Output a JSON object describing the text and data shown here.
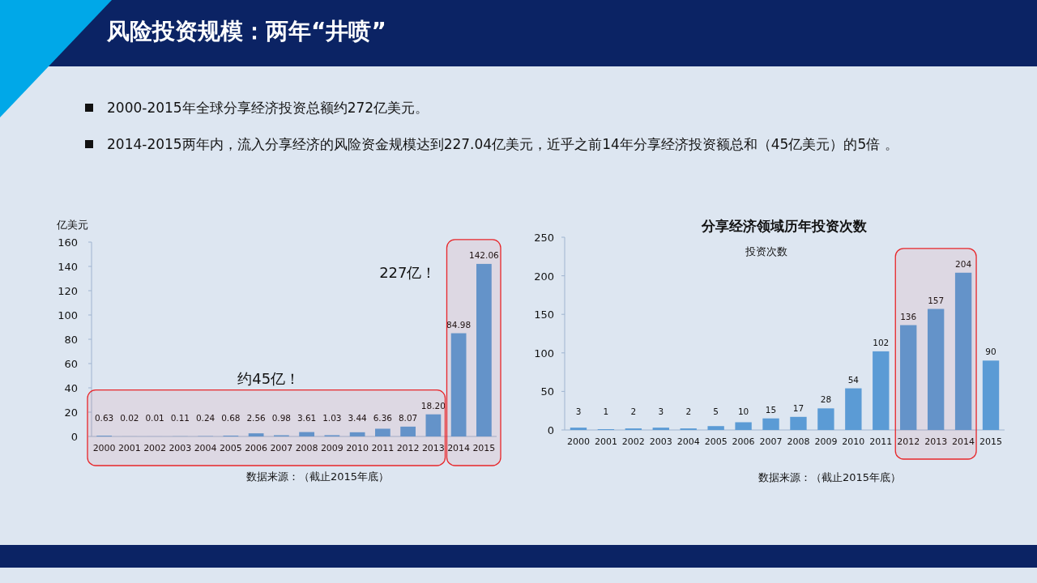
{
  "chart_data": [
    {
      "type": "bar",
      "title": "风险投资规模：两年“井喷”",
      "ylabel": "亿美元",
      "annotations": [
        "2000-2015年全球分享经济投资总额约272亿美元。",
        "2014-2015两年内，流入分享经济的风险资金规模达到227.04亿美元，近乎之前14年分享经济投资额总和（45亿美元）的5倍 。",
        "数据来源：（截止2015年底）"
      ],
      "categories": [
        "2000",
        "2001",
        "2002",
        "2003",
        "2004",
        "2005",
        "2006",
        "2007",
        "2008",
        "2009",
        "2010",
        "2011",
        "2012",
        "2013",
        "2014",
        "2015"
      ],
      "values": [
        0.63,
        0.02,
        0.01,
        0.11,
        0.24,
        0.68,
        2.56,
        0.98,
        3.61,
        1.03,
        3.44,
        6.36,
        8.07,
        18.2,
        84.98,
        142.06
      ],
      "value_labels": [
        "0.63",
        "0.02",
        "0.01",
        "0.11",
        "0.24",
        "0.68",
        "2.56",
        "0.98",
        "3.61",
        "1.03",
        "3.44",
        "6.36",
        "8.07",
        "18.20",
        "84.98",
        "142.06"
      ],
      "color": "#5b9bd5",
      "ylim": [
        0,
        160
      ],
      "yticks": [
        0,
        20,
        40,
        60,
        80,
        100,
        120,
        140,
        160
      ],
      "bands": [
        {
          "axis": "x",
          "from": "2000",
          "to": "2013",
          "label": "约45亿！",
          "color": "#e8262a"
        },
        {
          "axis": "x",
          "from": "2014",
          "to": "2015",
          "label": "227亿！",
          "color": "#e8262a"
        }
      ]
    },
    {
      "type": "bar",
      "title": "分享经济领域历年投资次数",
      "ylabel": "投资次数",
      "annotations": [
        "数据来源：（截止2015年底）"
      ],
      "categories": [
        "2000",
        "2001",
        "2002",
        "2003",
        "2004",
        "2005",
        "2006",
        "2007",
        "2008",
        "2009",
        "2010",
        "2011",
        "2012",
        "2013",
        "2014",
        "2015"
      ],
      "values": [
        3,
        1,
        2,
        3,
        2,
        5,
        10,
        15,
        17,
        28,
        54,
        102,
        136,
        157,
        204,
        90
      ],
      "data_labels": true,
      "color": "#5b9bd5",
      "ylim": [
        0,
        250
      ],
      "yticks": [
        0,
        50,
        100,
        150,
        200,
        250
      ],
      "bands": [
        {
          "axis": "x",
          "from": "2012",
          "to": "2014",
          "color": "#e8262a"
        }
      ]
    }
  ]
}
